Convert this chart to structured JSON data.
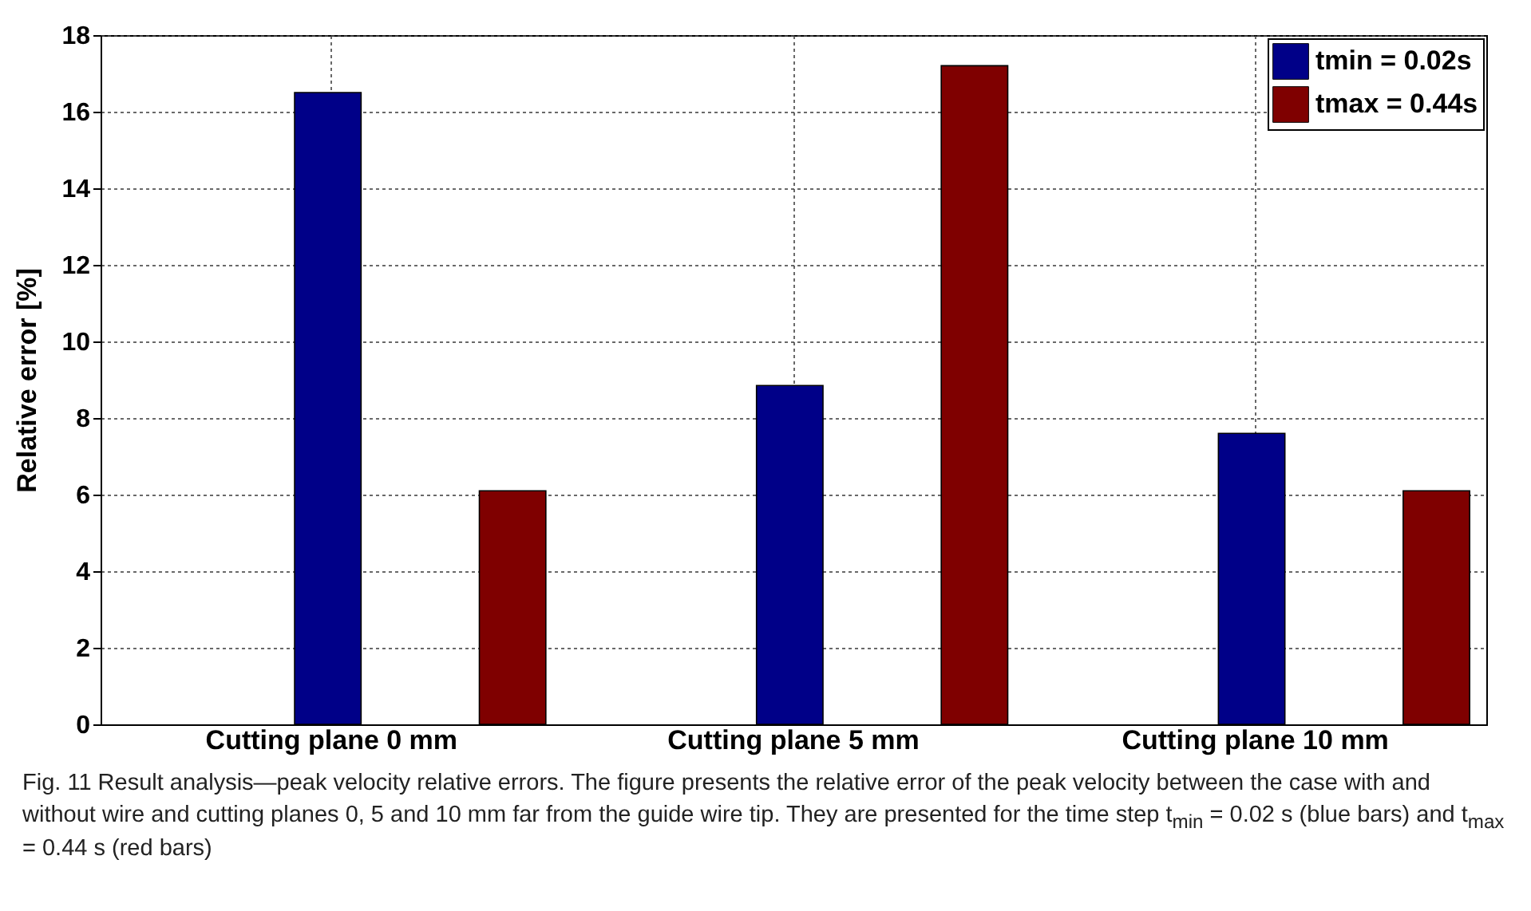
{
  "chart_data": {
    "type": "bar",
    "ylabel": "Relative error [%]",
    "categories": [
      "Cutting plane 0 mm",
      "Cutting plane 5 mm",
      "Cutting plane 10 mm"
    ],
    "series": [
      {
        "name": "tmin = 0.02s",
        "color": "#000088",
        "values": [
          16.5,
          8.85,
          7.6
        ]
      },
      {
        "name": "tmax = 0.44s",
        "color": "#7f0000",
        "values": [
          6.1,
          17.2,
          6.1
        ]
      }
    ],
    "ylim": [
      0,
      18
    ],
    "yticks": [
      0,
      2,
      4,
      6,
      8,
      10,
      12,
      14,
      16,
      18
    ],
    "grid": true,
    "legend": "top right",
    "annotations": [
      "Fig. 11 Result analysis—peak velocity relative errors. The figure presents the relative error of the peak velocity between the case with and without wire and cutting planes 0, 5 and 10 mm far from the guide wire tip. They are presented for the time step t$_{min}$ = 0.02 s (blue bars) and t$_{max}$ = 0.44 s (red bars)"
    ]
  }
}
